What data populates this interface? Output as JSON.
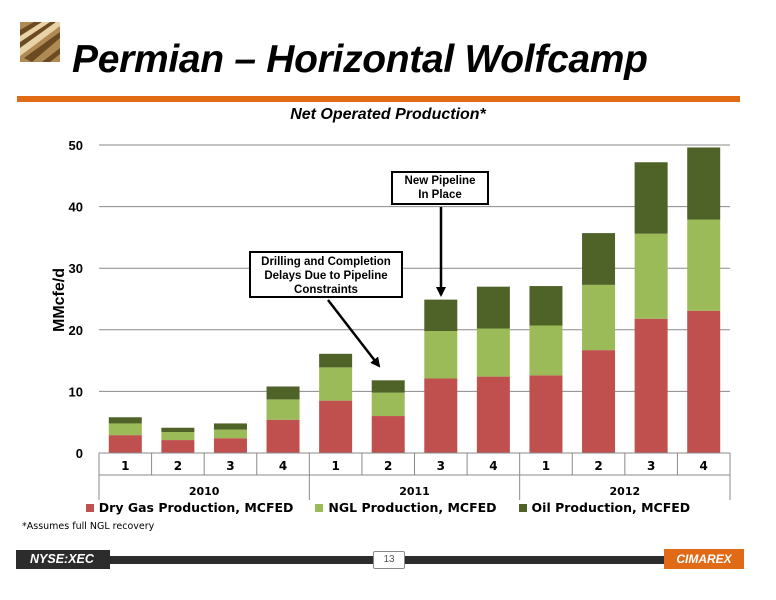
{
  "header": {
    "title": "Permian – Horizontal Wolfcamp",
    "subtitle": "Net Operated Production*"
  },
  "chart_data": {
    "type": "bar",
    "stacked": true,
    "title": "Net Operated Production*",
    "ylabel": "MMcfe/d",
    "xlabel": "",
    "ylim": [
      0,
      50
    ],
    "yticks": [
      0,
      10,
      20,
      30,
      40,
      50
    ],
    "grid": true,
    "legend_position": "bottom",
    "categories": [
      "1",
      "2",
      "3",
      "4",
      "1",
      "2",
      "3",
      "4",
      "1",
      "2",
      "3",
      "4"
    ],
    "year_groups": [
      {
        "label": "2010",
        "count": 4
      },
      {
        "label": "2011",
        "count": 4
      },
      {
        "label": "2012",
        "count": 4
      }
    ],
    "series": [
      {
        "name": "Dry Gas Production, MCFED",
        "color": "#C0504D",
        "values": [
          2.9,
          2.1,
          2.4,
          5.4,
          8.5,
          6.0,
          12.1,
          12.4,
          12.6,
          16.7,
          21.8,
          23.1
        ]
      },
      {
        "name": "NGL Production, MCFED",
        "color": "#9BBB59",
        "values": [
          1.9,
          1.3,
          1.4,
          3.3,
          5.4,
          3.8,
          7.7,
          7.8,
          8.1,
          10.6,
          13.8,
          14.8
        ]
      },
      {
        "name": "Oil Production, MCFED",
        "color": "#4F6228",
        "values": [
          1.0,
          0.7,
          1.0,
          2.1,
          2.2,
          2.0,
          5.1,
          6.8,
          6.4,
          8.4,
          11.6,
          11.7
        ]
      }
    ],
    "annotations": [
      {
        "text": "New Pipeline In Place",
        "points_to_category_index": 6
      },
      {
        "text": "Drilling and Completion Delays Due to Pipeline Constraints",
        "points_to_category_index": 5
      }
    ]
  },
  "annotations": {
    "pipeline_line1": "New Pipeline",
    "pipeline_line2": "In Place",
    "delays_line1": "Drilling and Completion",
    "delays_line2": "Delays Due to Pipeline",
    "delays_line3": "Constraints"
  },
  "footnote": "*Assumes full NGL recovery",
  "footer": {
    "ticker": "NYSE:XEC",
    "page_number": "13",
    "brand": "CIMAREX"
  }
}
